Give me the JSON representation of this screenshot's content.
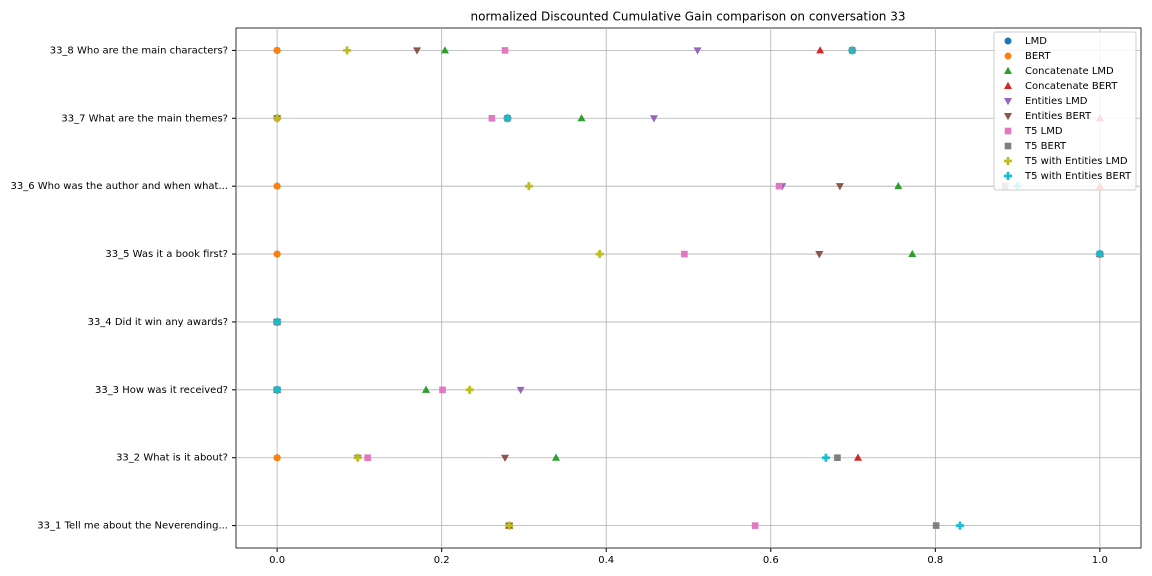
{
  "chart_data": {
    "type": "scatter",
    "title": "normalized Discounted Cumulative Gain comparison on conversation 33",
    "categories": [
      "33_1 Tell me about the Neverending...",
      "33_2 What is it about?",
      "33_3 How was it received?",
      "33_4 Did it win any awards?",
      "33_5 Was it a book first?",
      "33_6 Who was the author and when what...",
      "33_7 What are the main themes?",
      "33_8 Who are the main characters?"
    ],
    "series": [
      {
        "name": "LMD",
        "color": "#1f77b4",
        "marker": "circle",
        "values": [
          0.282,
          0,
          0,
          0,
          0,
          0,
          0,
          0
        ]
      },
      {
        "name": "BERT",
        "color": "#ff7f0e",
        "marker": "circle",
        "values": [
          0.282,
          0,
          0,
          0,
          0,
          0,
          0,
          0
        ]
      },
      {
        "name": "Concatenate LMD",
        "color": "#2ca02c",
        "marker": "triangle-up",
        "values": [
          0.282,
          0.339,
          0.181,
          0,
          0.772,
          0.755,
          0.37,
          0.204
        ]
      },
      {
        "name": "Concatenate BERT",
        "color": "#d62728",
        "marker": "triangle-up",
        "values": [
          0.282,
          0.706,
          0,
          0,
          1.0,
          1.0,
          1.0,
          0.66
        ]
      },
      {
        "name": "Entities LMD",
        "color": "#9467bd",
        "marker": "triangle-down",
        "values": [
          0.282,
          0.098,
          0.296,
          0,
          0.659,
          0.614,
          0.458,
          0.511
        ]
      },
      {
        "name": "Entities BERT",
        "color": "#8c564b",
        "marker": "triangle-down",
        "values": [
          0.282,
          0.277,
          0,
          0,
          0.659,
          0.684,
          0,
          0.17
        ]
      },
      {
        "name": "T5 LMD",
        "color": "#e377c2",
        "marker": "square",
        "values": [
          0.581,
          0.11,
          0.201,
          0,
          0.495,
          0.61,
          0.261,
          0.277
        ]
      },
      {
        "name": "T5 BERT",
        "color": "#7f7f7f",
        "marker": "square",
        "values": [
          0.801,
          0.681,
          0,
          0,
          1.0,
          0.885,
          0.28,
          0.699
        ]
      },
      {
        "name": "T5 with Entities LMD",
        "color": "#bcbd22",
        "marker": "plus",
        "values": [
          0.282,
          0.098,
          0.234,
          0,
          0.392,
          0.306,
          0,
          0.085
        ]
      },
      {
        "name": "T5 with Entities BERT",
        "color": "#17becf",
        "marker": "plus",
        "values": [
          0.83,
          0.667,
          0,
          0,
          1.0,
          0.9,
          0.28,
          0.699
        ]
      }
    ],
    "xlim": [
      -0.05,
      1.05
    ],
    "xticks": [
      {
        "value": 0,
        "label": "0.0"
      },
      0.2,
      0.4,
      0.6,
      0.8,
      {
        "value": 1,
        "label": "1.0"
      }
    ],
    "grid": true,
    "legend": "upper right"
  }
}
